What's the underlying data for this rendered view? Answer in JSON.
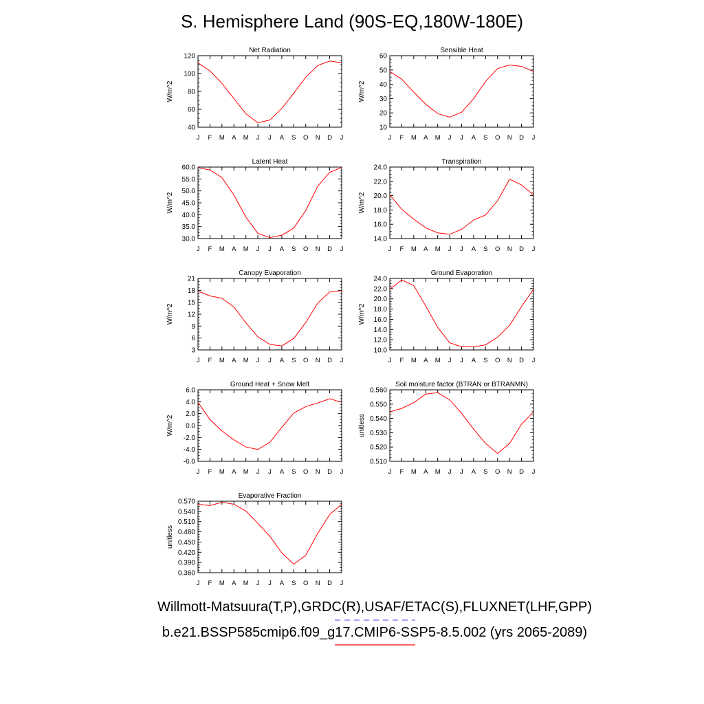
{
  "title": "S. Hemisphere Land (90S-EQ,180W-180E)",
  "footer": {
    "line1": "Willmott-Matsuura(T,P),GRDC(R),USAF/ETAC(S),FLUXNET(LHF,GPP)",
    "line2": "b.e21.BSSP585cmip6.f09_g17.CMIP6-SSP5-8.5.002 (yrs 2065-2089)",
    "line1_legend_color": "#6a6af0",
    "line2_legend_color": "#ff0000"
  },
  "colors": {
    "series": "#ff0000",
    "axis": "#000000"
  },
  "chart_data": [
    {
      "type": "line",
      "title": "Net Radiation",
      "ylabel": "W/m^2",
      "x": [
        "J",
        "F",
        "M",
        "A",
        "M",
        "J",
        "J",
        "A",
        "S",
        "O",
        "N",
        "D",
        "J"
      ],
      "ylim": [
        40,
        120
      ],
      "yticks": [
        "40",
        "60",
        "80",
        "100",
        "120"
      ],
      "series": [
        {
          "values": [
            112,
            103,
            89,
            72,
            55,
            45,
            48,
            61,
            78,
            96,
            109,
            114,
            112
          ]
        }
      ]
    },
    {
      "type": "line",
      "title": "Sensible Heat",
      "ylabel": "W/m^2",
      "x": [
        "J",
        "F",
        "M",
        "A",
        "M",
        "J",
        "J",
        "A",
        "S",
        "O",
        "N",
        "D",
        "J"
      ],
      "ylim": [
        10,
        60
      ],
      "yticks": [
        "10",
        "20",
        "30",
        "40",
        "50",
        "60"
      ],
      "series": [
        {
          "values": [
            49,
            43.5,
            34.5,
            26,
            19.5,
            17,
            20.5,
            30,
            42,
            51,
            53.5,
            52.5,
            49
          ]
        }
      ]
    },
    {
      "type": "line",
      "title": "Latent Heat",
      "ylabel": "W/m^2",
      "x": [
        "J",
        "F",
        "M",
        "A",
        "M",
        "J",
        "J",
        "A",
        "S",
        "O",
        "N",
        "D",
        "J"
      ],
      "ylim": [
        30,
        60
      ],
      "yticks": [
        "30.0",
        "35.0",
        "40.0",
        "45.0",
        "50.0",
        "55.0",
        "60.0"
      ],
      "series": [
        {
          "values": [
            59.8,
            58.8,
            55.6,
            48.2,
            39.0,
            32.2,
            30.4,
            31.4,
            34.4,
            41.8,
            52.0,
            57.8,
            59.8
          ]
        }
      ]
    },
    {
      "type": "line",
      "title": "Transpiration",
      "ylabel": "W/m^2",
      "x": [
        "J",
        "F",
        "M",
        "A",
        "M",
        "J",
        "J",
        "A",
        "S",
        "O",
        "N",
        "D",
        "J"
      ],
      "ylim": [
        14,
        24
      ],
      "yticks": [
        "14.0",
        "16.0",
        "18.0",
        "20.0",
        "22.0",
        "24.0"
      ],
      "series": [
        {
          "values": [
            20.1,
            18.1,
            16.7,
            15.5,
            14.8,
            14.6,
            15.3,
            16.6,
            17.3,
            19.3,
            22.3,
            21.5,
            20.1
          ]
        }
      ]
    },
    {
      "type": "line",
      "title": "Canopy Evaporation",
      "ylabel": "W/m^2",
      "x": [
        "J",
        "F",
        "M",
        "A",
        "M",
        "J",
        "J",
        "A",
        "S",
        "O",
        "N",
        "D",
        "J"
      ],
      "ylim": [
        3,
        21
      ],
      "yticks": [
        "3",
        "6",
        "9",
        "12",
        "15",
        "18",
        "21"
      ],
      "series": [
        {
          "values": [
            17.8,
            16.6,
            16.0,
            13.8,
            9.8,
            6.3,
            4.4,
            4.0,
            5.9,
            9.9,
            14.8,
            17.6,
            17.9
          ]
        }
      ]
    },
    {
      "type": "line",
      "title": "Ground Evaporation",
      "ylabel": "W/m^2",
      "x": [
        "J",
        "F",
        "M",
        "A",
        "M",
        "J",
        "J",
        "A",
        "S",
        "O",
        "N",
        "D",
        "J"
      ],
      "ylim": [
        10,
        24
      ],
      "yticks": [
        "10.0",
        "12.0",
        "14.0",
        "16.0",
        "18.0",
        "20.0",
        "22.0",
        "24.0"
      ],
      "series": [
        {
          "values": [
            21.9,
            23.7,
            22.6,
            18.6,
            14.4,
            11.4,
            10.6,
            10.6,
            11.0,
            12.5,
            14.8,
            18.5,
            21.9
          ]
        }
      ]
    },
    {
      "type": "line",
      "title": "Ground Heat + Snow Melt",
      "ylabel": "W/m^2",
      "x": [
        "J",
        "F",
        "M",
        "A",
        "M",
        "J",
        "J",
        "A",
        "S",
        "O",
        "N",
        "D",
        "J"
      ],
      "ylim": [
        -6,
        6
      ],
      "yticks": [
        "-6.0",
        "-4.0",
        "-2.0",
        "0.0",
        "2.0",
        "4.0",
        "6.0"
      ],
      "series": [
        {
          "values": [
            3.9,
            1.0,
            -0.9,
            -2.4,
            -3.6,
            -4.0,
            -2.8,
            -0.3,
            2.1,
            3.2,
            3.8,
            4.5,
            3.9
          ]
        }
      ]
    },
    {
      "type": "line",
      "title": "Soil moisture factor (BTRAN or BTRANMN)",
      "ylabel": "unitless",
      "x": [
        "J",
        "F",
        "M",
        "A",
        "M",
        "J",
        "J",
        "A",
        "S",
        "O",
        "N",
        "D",
        "J"
      ],
      "ylim": [
        0.51,
        0.56
      ],
      "yticks": [
        "0.510",
        "0.520",
        "0.530",
        "0.540",
        "0.550",
        "0.560"
      ],
      "series": [
        {
          "values": [
            0.5445,
            0.547,
            0.551,
            0.557,
            0.558,
            0.553,
            0.5435,
            0.5325,
            0.5225,
            0.5155,
            0.5225,
            0.536,
            0.5445
          ]
        }
      ]
    },
    {
      "type": "line",
      "title": "Evaporative Fraction",
      "ylabel": "unitless",
      "x": [
        "J",
        "F",
        "M",
        "A",
        "M",
        "J",
        "J",
        "A",
        "S",
        "O",
        "N",
        "D",
        "J"
      ],
      "ylim": [
        0.36,
        0.57
      ],
      "yticks": [
        "0.360",
        "0.390",
        "0.420",
        "0.450",
        "0.480",
        "0.510",
        "0.540",
        "0.570"
      ],
      "series": [
        {
          "values": [
            0.561,
            0.557,
            0.567,
            0.561,
            0.541,
            0.505,
            0.467,
            0.418,
            0.385,
            0.411,
            0.476,
            0.531,
            0.561
          ]
        }
      ]
    }
  ]
}
